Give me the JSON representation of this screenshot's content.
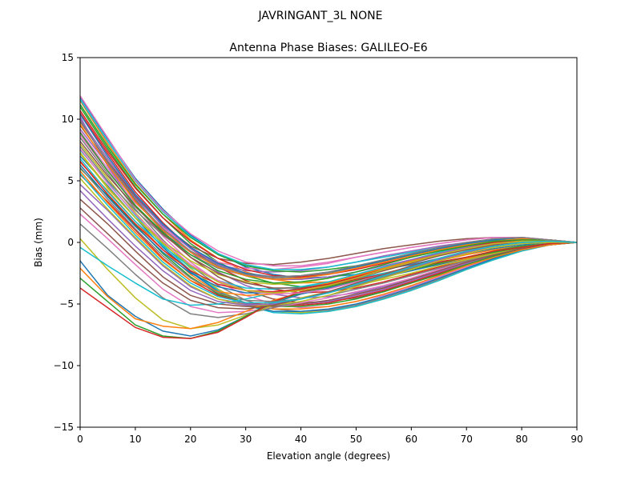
{
  "figure": {
    "suptitle": "JAVRINGANT_3L   NONE"
  },
  "chart_data": {
    "type": "line",
    "title": "Antenna Phase Biases: GALILEO-E6",
    "xlabel": "Elevation angle (degrees)",
    "ylabel": "Bias (mm)",
    "xlim": [
      0,
      90
    ],
    "ylim": [
      -15,
      15
    ],
    "xticks": [
      0,
      10,
      20,
      30,
      40,
      50,
      60,
      70,
      80,
      90
    ],
    "xtick_labels": [
      "0",
      "10",
      "20",
      "30",
      "40",
      "50",
      "60",
      "70",
      "80",
      "90"
    ],
    "yticks": [
      -15,
      -10,
      -5,
      0,
      5,
      10,
      15
    ],
    "ytick_labels": [
      "−15",
      "−10",
      "−5",
      "0",
      "5",
      "10",
      "15"
    ],
    "grid": false,
    "legend": "none",
    "x": [
      0,
      5,
      10,
      15,
      20,
      25,
      30,
      35,
      40,
      45,
      50,
      55,
      60,
      65,
      70,
      75,
      80,
      85,
      90
    ],
    "colors": [
      "#1f77b4",
      "#ff7f0e",
      "#2ca02c",
      "#d62728",
      "#9467bd",
      "#8c564b",
      "#e377c2",
      "#7f7f7f",
      "#bcbd22",
      "#17becf"
    ],
    "series": [
      {
        "values": [
          11.8,
          8.4,
          5.2,
          2.7,
          0.6,
          -0.9,
          -2.0,
          -2.6,
          -2.9,
          -2.8,
          -2.6,
          -2.2,
          -1.8,
          -1.3,
          -0.9,
          -0.5,
          -0.2,
          0.0,
          0.0
        ]
      },
      {
        "values": [
          11.5,
          8.0,
          4.8,
          2.3,
          0.2,
          -1.3,
          -2.4,
          -3.0,
          -3.3,
          -3.2,
          -2.9,
          -2.5,
          -2.0,
          -1.5,
          -1.0,
          -0.6,
          -0.3,
          -0.1,
          0.0
        ]
      },
      {
        "values": [
          11.0,
          7.6,
          4.5,
          2.0,
          -0.1,
          -1.6,
          -2.7,
          -3.3,
          -3.6,
          -3.5,
          -3.2,
          -2.8,
          -2.3,
          -1.7,
          -1.2,
          -0.7,
          -0.3,
          -0.1,
          0.0
        ]
      },
      {
        "values": [
          10.5,
          7.2,
          4.1,
          1.6,
          -0.5,
          -2.0,
          -3.1,
          -3.8,
          -4.1,
          -4.0,
          -3.7,
          -3.2,
          -2.6,
          -2.0,
          -1.4,
          -0.8,
          -0.4,
          -0.1,
          0.0
        ]
      },
      {
        "values": [
          10.0,
          6.8,
          3.8,
          1.3,
          -0.8,
          -2.4,
          -3.5,
          -4.2,
          -4.5,
          -4.4,
          -4.1,
          -3.6,
          -3.0,
          -2.3,
          -1.6,
          -1.0,
          -0.5,
          -0.2,
          0.0
        ]
      },
      {
        "values": [
          9.5,
          6.4,
          3.4,
          0.9,
          -1.2,
          -2.8,
          -3.9,
          -4.6,
          -4.9,
          -4.8,
          -4.5,
          -4.0,
          -3.3,
          -2.6,
          -1.8,
          -1.1,
          -0.6,
          -0.2,
          0.0
        ]
      },
      {
        "values": [
          9.0,
          6.0,
          3.0,
          0.5,
          -1.6,
          -3.2,
          -4.3,
          -5.0,
          -5.3,
          -5.2,
          -4.8,
          -4.3,
          -3.6,
          -2.8,
          -2.0,
          -1.2,
          -0.6,
          -0.2,
          0.0
        ]
      },
      {
        "values": [
          8.5,
          5.6,
          2.7,
          0.2,
          -1.9,
          -3.5,
          -4.7,
          -5.4,
          -5.6,
          -5.5,
          -5.1,
          -4.5,
          -3.8,
          -3.0,
          -2.1,
          -1.3,
          -0.7,
          -0.2,
          0.0
        ]
      },
      {
        "values": [
          8.0,
          5.2,
          2.4,
          0.0,
          -2.1,
          -3.8,
          -5.0,
          -5.6,
          -5.7,
          -5.6,
          -5.2,
          -4.6,
          -3.9,
          -3.1,
          -2.2,
          -1.4,
          -0.7,
          -0.2,
          0.0
        ]
      },
      {
        "values": [
          7.5,
          4.9,
          2.2,
          -0.2,
          -2.3,
          -3.9,
          -5.1,
          -5.7,
          -5.8,
          -5.6,
          -5.2,
          -4.6,
          -3.9,
          -3.1,
          -2.2,
          -1.4,
          -0.7,
          -0.2,
          0.0
        ]
      },
      {
        "values": [
          7.0,
          4.6,
          2.0,
          -0.4,
          -2.4,
          -4.0,
          -5.1,
          -5.6,
          -5.6,
          -5.4,
          -5.0,
          -4.4,
          -3.7,
          -2.9,
          -2.1,
          -1.3,
          -0.6,
          -0.2,
          0.0
        ]
      },
      {
        "values": [
          6.5,
          4.2,
          1.7,
          -0.6,
          -2.6,
          -4.1,
          -5.0,
          -5.4,
          -5.4,
          -5.2,
          -4.8,
          -4.2,
          -3.5,
          -2.7,
          -1.9,
          -1.2,
          -0.6,
          -0.2,
          0.0
        ]
      },
      {
        "values": [
          6.0,
          3.8,
          1.4,
          -0.9,
          -2.8,
          -4.2,
          -4.9,
          -5.2,
          -5.2,
          -5.0,
          -4.6,
          -4.0,
          -3.3,
          -2.6,
          -1.8,
          -1.1,
          -0.5,
          -0.1,
          0.0
        ]
      },
      {
        "values": [
          5.5,
          3.3,
          1.0,
          -1.3,
          -3.1,
          -4.3,
          -4.9,
          -5.1,
          -5.1,
          -4.9,
          -4.4,
          -3.9,
          -3.2,
          -2.5,
          -1.7,
          -1.0,
          -0.5,
          -0.1,
          0.0
        ]
      },
      {
        "values": [
          4.7,
          2.6,
          0.3,
          -1.9,
          -3.6,
          -4.6,
          -5.0,
          -5.1,
          -5.0,
          -4.8,
          -4.3,
          -3.8,
          -3.1,
          -2.4,
          -1.7,
          -1.0,
          -0.5,
          -0.1,
          0.0
        ]
      },
      {
        "values": [
          3.5,
          1.5,
          -0.7,
          -2.8,
          -4.3,
          -5.0,
          -5.2,
          -5.2,
          -5.0,
          -4.7,
          -4.2,
          -3.7,
          -3.0,
          -2.3,
          -1.6,
          -1.0,
          -0.5,
          -0.1,
          0.0
        ]
      },
      {
        "values": [
          2.3,
          0.3,
          -1.8,
          -3.8,
          -5.2,
          -5.7,
          -5.6,
          -5.3,
          -4.9,
          -4.5,
          -4.0,
          -3.5,
          -2.9,
          -2.2,
          -1.5,
          -0.9,
          -0.4,
          -0.1,
          0.0
        ]
      },
      {
        "values": [
          1.5,
          -0.5,
          -2.6,
          -4.5,
          -5.8,
          -6.1,
          -5.8,
          -5.3,
          -4.8,
          -4.3,
          -3.8,
          -3.3,
          -2.7,
          -2.1,
          -1.5,
          -0.9,
          -0.4,
          -0.1,
          0.0
        ]
      },
      {
        "values": [
          0.3,
          -2.2,
          -4.5,
          -6.3,
          -7.0,
          -6.7,
          -5.9,
          -5.1,
          -4.5,
          -4.0,
          -3.5,
          -3.0,
          -2.5,
          -1.9,
          -1.4,
          -0.9,
          -0.4,
          -0.1,
          0.0
        ]
      },
      {
        "values": [
          -0.4,
          -1.9,
          -3.3,
          -4.6,
          -5.1,
          -5.0,
          -4.6,
          -4.1,
          -3.7,
          -3.3,
          -2.9,
          -2.5,
          -2.1,
          -1.6,
          -1.2,
          -0.8,
          -0.4,
          -0.1,
          0.0
        ]
      },
      {
        "values": [
          -1.5,
          -4.3,
          -6.0,
          -7.2,
          -7.6,
          -7.1,
          -6.0,
          -4.9,
          -4.2,
          -3.7,
          -3.2,
          -2.8,
          -2.3,
          -1.8,
          -1.3,
          -0.8,
          -0.4,
          -0.1,
          0.0
        ]
      },
      {
        "values": [
          -2.1,
          -4.4,
          -6.2,
          -6.8,
          -7.0,
          -6.5,
          -5.6,
          -4.7,
          -4.1,
          -3.6,
          -3.1,
          -2.7,
          -2.2,
          -1.7,
          -1.3,
          -0.8,
          -0.4,
          -0.1,
          0.0
        ]
      },
      {
        "values": [
          -2.9,
          -4.8,
          -6.7,
          -7.6,
          -7.8,
          -7.2,
          -6.0,
          -4.8,
          -4.1,
          -3.6,
          -3.1,
          -2.7,
          -2.2,
          -1.7,
          -1.2,
          -0.8,
          -0.4,
          -0.1,
          0.0
        ]
      },
      {
        "values": [
          -3.7,
          -5.3,
          -6.9,
          -7.7,
          -7.8,
          -7.3,
          -6.1,
          -4.8,
          -4.0,
          -3.5,
          -3.0,
          -2.6,
          -2.1,
          -1.6,
          -1.2,
          -0.7,
          -0.4,
          -0.1,
          0.0
        ]
      },
      {
        "values": [
          10.2,
          6.2,
          3.0,
          0.8,
          -0.8,
          -1.8,
          -2.3,
          -2.4,
          -2.3,
          -2.0,
          -1.6,
          -1.1,
          -0.7,
          -0.3,
          0.0,
          0.2,
          0.3,
          0.2,
          0.0
        ]
      },
      {
        "values": [
          9.8,
          6.6,
          3.7,
          1.4,
          -0.3,
          -1.3,
          -1.7,
          -1.8,
          -1.6,
          -1.3,
          -0.9,
          -0.5,
          -0.2,
          0.1,
          0.3,
          0.4,
          0.4,
          0.2,
          0.0
        ]
      },
      {
        "values": [
          8.7,
          5.8,
          3.2,
          1.2,
          -0.5,
          -1.6,
          -2.1,
          -2.2,
          -2.0,
          -1.7,
          -1.2,
          -0.8,
          -0.4,
          -0.1,
          0.2,
          0.4,
          0.4,
          0.2,
          0.0
        ]
      },
      {
        "values": [
          7.8,
          5.0,
          2.6,
          0.6,
          -1.0,
          -2.1,
          -2.7,
          -2.9,
          -2.8,
          -2.5,
          -2.0,
          -1.5,
          -1.0,
          -0.5,
          -0.1,
          0.2,
          0.3,
          0.2,
          0.0
        ]
      },
      {
        "values": [
          7.2,
          4.4,
          2.0,
          0.1,
          -1.5,
          -2.6,
          -3.2,
          -3.4,
          -3.3,
          -2.9,
          -2.4,
          -1.8,
          -1.2,
          -0.7,
          -0.2,
          0.1,
          0.3,
          0.2,
          0.0
        ]
      },
      {
        "values": [
          6.8,
          4.1,
          1.7,
          -0.3,
          -2.0,
          -3.1,
          -3.7,
          -3.8,
          -3.6,
          -3.2,
          -2.6,
          -2.0,
          -1.4,
          -0.8,
          -0.3,
          0.1,
          0.3,
          0.2,
          0.0
        ]
      },
      {
        "values": [
          6.3,
          3.7,
          1.3,
          -0.8,
          -2.5,
          -3.6,
          -4.1,
          -4.1,
          -3.8,
          -3.3,
          -2.7,
          -2.1,
          -1.5,
          -0.9,
          -0.4,
          0.0,
          0.2,
          0.2,
          0.0
        ]
      },
      {
        "values": [
          5.8,
          3.2,
          0.8,
          -1.4,
          -3.1,
          -4.0,
          -4.3,
          -4.2,
          -3.8,
          -3.3,
          -2.7,
          -2.1,
          -1.5,
          -0.9,
          -0.4,
          0.0,
          0.2,
          0.2,
          0.0
        ]
      },
      {
        "values": [
          11.2,
          7.8,
          4.7,
          2.3,
          0.4,
          -1.0,
          -1.9,
          -2.3,
          -2.4,
          -2.2,
          -1.9,
          -1.5,
          -1.0,
          -0.6,
          -0.2,
          0.1,
          0.2,
          0.2,
          0.0
        ]
      },
      {
        "values": [
          10.7,
          7.4,
          4.4,
          2.0,
          0.1,
          -1.3,
          -2.2,
          -2.7,
          -2.8,
          -2.6,
          -2.2,
          -1.7,
          -1.2,
          -0.7,
          -0.3,
          0.0,
          0.2,
          0.2,
          0.0
        ]
      },
      {
        "values": [
          9.2,
          6.3,
          3.6,
          1.4,
          -0.5,
          -1.8,
          -2.6,
          -3.0,
          -3.0,
          -2.8,
          -2.4,
          -1.9,
          -1.4,
          -0.9,
          -0.4,
          -0.1,
          0.1,
          0.1,
          0.0
        ]
      },
      {
        "values": [
          8.2,
          5.4,
          2.9,
          0.7,
          -1.2,
          -2.5,
          -3.3,
          -3.7,
          -3.7,
          -3.4,
          -2.9,
          -2.3,
          -1.7,
          -1.1,
          -0.6,
          -0.2,
          0.0,
          0.1,
          0.0
        ]
      },
      {
        "values": [
          7.6,
          4.8,
          2.3,
          0.1,
          -1.8,
          -3.1,
          -3.9,
          -4.2,
          -4.1,
          -3.8,
          -3.2,
          -2.6,
          -1.9,
          -1.3,
          -0.7,
          -0.3,
          0.0,
          0.1,
          0.0
        ]
      },
      {
        "values": [
          6.1,
          3.5,
          1.1,
          -1.1,
          -2.9,
          -4.1,
          -4.7,
          -4.8,
          -4.6,
          -4.1,
          -3.5,
          -2.8,
          -2.1,
          -1.4,
          -0.8,
          -0.3,
          0.0,
          0.1,
          0.0
        ]
      },
      {
        "values": [
          5.2,
          2.7,
          0.4,
          -1.8,
          -3.5,
          -4.6,
          -5.1,
          -5.1,
          -4.8,
          -4.3,
          -3.6,
          -2.9,
          -2.2,
          -1.5,
          -0.9,
          -0.4,
          -0.1,
          0.0,
          0.0
        ]
      },
      {
        "values": [
          11.6,
          8.2,
          5.0,
          2.5,
          0.5,
          -0.9,
          -1.8,
          -2.2,
          -2.2,
          -2.0,
          -1.6,
          -1.2,
          -0.8,
          -0.4,
          -0.1,
          0.2,
          0.3,
          0.2,
          0.0
        ]
      },
      {
        "values": [
          10.4,
          7.0,
          3.9,
          1.5,
          -0.4,
          -1.7,
          -2.5,
          -2.8,
          -2.7,
          -2.4,
          -2.0,
          -1.5,
          -1.0,
          -0.5,
          -0.1,
          0.2,
          0.3,
          0.2,
          0.0
        ]
      },
      {
        "values": [
          9.6,
          6.3,
          3.3,
          1.0,
          -0.8,
          -2.0,
          -2.7,
          -3.0,
          -2.9,
          -2.6,
          -2.1,
          -1.6,
          -1.1,
          -0.6,
          -0.2,
          0.1,
          0.3,
          0.2,
          0.0
        ]
      },
      {
        "values": [
          8.9,
          5.8,
          3.0,
          0.8,
          -1.0,
          -2.3,
          -3.0,
          -3.3,
          -3.2,
          -2.9,
          -2.4,
          -1.8,
          -1.2,
          -0.7,
          -0.3,
          0.1,
          0.2,
          0.2,
          0.0
        ]
      },
      {
        "values": [
          6.6,
          3.9,
          1.5,
          -0.6,
          -2.3,
          -3.4,
          -3.9,
          -4.0,
          -3.8,
          -3.4,
          -2.8,
          -2.2,
          -1.6,
          -1.0,
          -0.5,
          -0.1,
          0.1,
          0.1,
          0.0
        ]
      },
      {
        "values": [
          4.2,
          1.9,
          -0.3,
          -2.3,
          -3.9,
          -4.8,
          -5.1,
          -5.0,
          -4.6,
          -4.0,
          -3.4,
          -2.7,
          -2.0,
          -1.4,
          -0.8,
          -0.3,
          0.0,
          0.1,
          0.0
        ]
      },
      {
        "values": [
          2.8,
          0.7,
          -1.4,
          -3.3,
          -4.7,
          -5.3,
          -5.4,
          -5.1,
          -4.6,
          -4.0,
          -3.3,
          -2.6,
          -1.9,
          -1.3,
          -0.7,
          -0.3,
          0.0,
          0.1,
          0.0
        ]
      },
      {
        "values": [
          11.9,
          8.5,
          5.1,
          2.6,
          0.7,
          -0.7,
          -1.6,
          -1.9,
          -1.9,
          -1.6,
          -1.2,
          -0.8,
          -0.4,
          -0.1,
          0.2,
          0.4,
          0.4,
          0.2,
          0.0
        ]
      },
      {
        "values": [
          9.9,
          6.5,
          3.5,
          1.1,
          -0.7,
          -1.9,
          -2.6,
          -2.8,
          -2.7,
          -2.4,
          -1.9,
          -1.4,
          -0.9,
          -0.4,
          0.0,
          0.3,
          0.4,
          0.2,
          0.0
        ]
      },
      {
        "values": [
          7.3,
          4.5,
          2.0,
          -0.1,
          -1.9,
          -3.2,
          -3.9,
          -4.1,
          -3.9,
          -3.5,
          -2.9,
          -2.2,
          -1.6,
          -1.0,
          -0.5,
          -0.1,
          0.1,
          0.1,
          0.0
        ]
      },
      {
        "values": [
          5.6,
          3.0,
          0.6,
          -1.6,
          -3.3,
          -4.4,
          -4.9,
          -4.9,
          -4.6,
          -4.1,
          -3.4,
          -2.7,
          -2.0,
          -1.3,
          -0.7,
          -0.3,
          0.0,
          0.1,
          0.0
        ]
      }
    ]
  }
}
